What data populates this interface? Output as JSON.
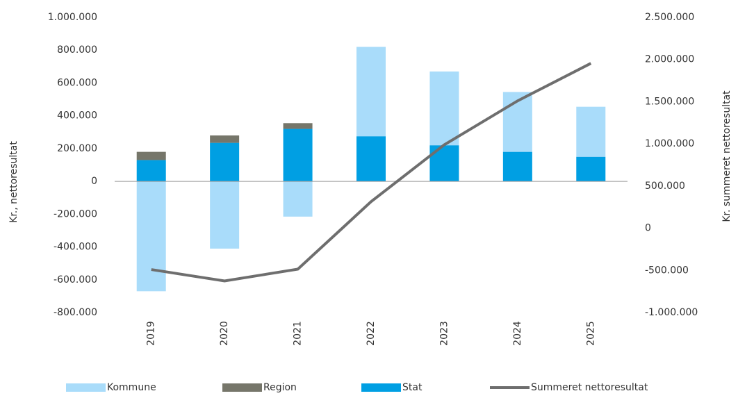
{
  "chart_data": {
    "type": "bar-line",
    "categories": [
      "2019",
      "2020",
      "2021",
      "2022",
      "2023",
      "2024",
      "2025"
    ],
    "y_label": "Kr., nettoresultat",
    "y2_label": "Kr. summeret nettoresultat",
    "ylim": [
      -800000,
      1000000
    ],
    "yticks": [
      {
        "value": -800000,
        "label": "-800.000"
      },
      {
        "value": -600000,
        "label": "-600.000"
      },
      {
        "value": -400000,
        "label": "-400.000"
      },
      {
        "value": -200000,
        "label": "-200.000"
      },
      0,
      {
        "value": 200000,
        "label": "200.000"
      },
      {
        "value": 400000,
        "label": "400.000"
      },
      {
        "value": 600000,
        "label": "600.000"
      },
      {
        "value": 800000,
        "label": "800.000"
      },
      {
        "value": 1000000,
        "label": "1.000.000"
      }
    ],
    "y2lim": [
      -1000000,
      2500000
    ],
    "y2ticks": [
      {
        "value": -1000000,
        "label": "-1.000.000"
      },
      {
        "value": -500000,
        "label": "-500.000"
      },
      0,
      {
        "value": 500000,
        "label": "500.000"
      },
      {
        "value": 1000000,
        "label": "1.000.000"
      },
      {
        "value": 1500000,
        "label": "1.500.000"
      },
      {
        "value": 2000000,
        "label": "2.000.000"
      },
      {
        "value": 2500000,
        "label": "2.500.000"
      }
    ],
    "stacked": true,
    "series": [
      {
        "name": "Kommune",
        "type": "bar",
        "color": "#a9dcfa",
        "values": [
          -670000,
          -410000,
          -215000,
          545000,
          450000,
          365000,
          305000
        ]
      },
      {
        "name": "Region",
        "type": "bar",
        "color": "#76766a",
        "values": [
          50000,
          45000,
          35000,
          null,
          null,
          null,
          null
        ]
      },
      {
        "name": "Stat",
        "type": "bar",
        "color": "#009fe3",
        "values": [
          130000,
          235000,
          320000,
          275000,
          220000,
          180000,
          150000
        ]
      },
      {
        "name": "Summeret nettoresultat",
        "type": "line",
        "axis": "y2",
        "color": "#6e6e6e",
        "values": [
          -490000,
          -625000,
          -485000,
          315000,
          990000,
          1510000,
          1955000
        ]
      }
    ]
  }
}
